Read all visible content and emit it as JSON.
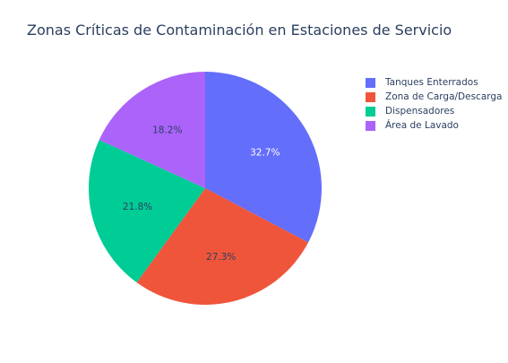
{
  "chart_data": {
    "type": "pie",
    "title": "Zonas Críticas de Contaminación en Estaciones de Servicio",
    "categories": [
      "Tanques Enterrados",
      "Zona de Carga/Descarga",
      "Dispensadores",
      "Área de Lavado"
    ],
    "values": [
      32.7,
      27.3,
      21.8,
      18.2
    ],
    "labels": [
      "32.7%",
      "27.3%",
      "21.8%",
      "18.2%"
    ],
    "colors": [
      "#636efa",
      "#ef553b",
      "#00cc96",
      "#ab63fa"
    ],
    "label_colors": [
      "#ffffff",
      "#2a3f5f",
      "#2a3f5f",
      "#2a3f5f"
    ],
    "direction": "clockwise",
    "start": "12 o'clock",
    "legend_position": "top-right"
  }
}
